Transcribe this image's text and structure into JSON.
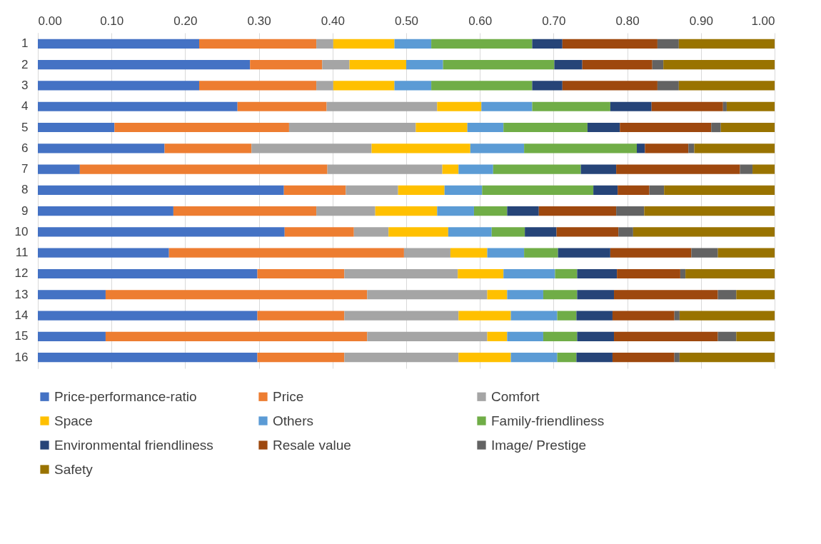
{
  "chart_data": {
    "type": "bar",
    "orientation": "horizontal",
    "stacked": true,
    "grid": "x",
    "legend": "bottom",
    "categories": [
      "1",
      "2",
      "3",
      "4",
      "5",
      "6",
      "7",
      "8",
      "9",
      "10",
      "11",
      "12",
      "13",
      "14",
      "15",
      "16"
    ],
    "xlim": [
      0,
      1
    ],
    "xticks": [
      {
        "value": 0,
        "label": "0.00"
      },
      {
        "value": 0.1,
        "label": "0.10"
      },
      {
        "value": 0.2,
        "label": "0.20"
      },
      {
        "value": 0.3,
        "label": "0.30"
      },
      {
        "value": 0.4,
        "label": "0.40"
      },
      {
        "value": 0.5,
        "label": "0.50"
      },
      {
        "value": 0.6,
        "label": "0.60"
      },
      {
        "value": 0.7,
        "label": "0.70"
      },
      {
        "value": 0.8,
        "label": "0.80"
      },
      {
        "value": 0.9,
        "label": "0.90"
      },
      {
        "value": 1,
        "label": "1.00"
      }
    ],
    "series": [
      {
        "name": "Price-performance-ratio",
        "color": "#4472c4",
        "values": [
          0.219,
          0.288,
          0.219,
          0.271,
          0.104,
          0.172,
          0.057,
          0.334,
          0.184,
          0.335,
          0.178,
          0.298,
          0.092,
          0.298,
          0.092,
          0.298
        ]
      },
      {
        "name": "Price",
        "color": "#ed7d31",
        "values": [
          0.159,
          0.098,
          0.159,
          0.121,
          0.237,
          0.118,
          0.336,
          0.084,
          0.194,
          0.094,
          0.319,
          0.118,
          0.355,
          0.118,
          0.355,
          0.118
        ]
      },
      {
        "name": "Comfort",
        "color": "#a5a5a5",
        "values": [
          0.023,
          0.037,
          0.023,
          0.15,
          0.172,
          0.163,
          0.156,
          0.071,
          0.08,
          0.047,
          0.063,
          0.154,
          0.163,
          0.155,
          0.163,
          0.155
        ]
      },
      {
        "name": "Space",
        "color": "#ffc000",
        "values": [
          0.083,
          0.077,
          0.083,
          0.06,
          0.07,
          0.134,
          0.022,
          0.063,
          0.084,
          0.081,
          0.05,
          0.062,
          0.027,
          0.071,
          0.027,
          0.071
        ]
      },
      {
        "name": "Others",
        "color": "#5b9bd5",
        "values": [
          0.05,
          0.05,
          0.05,
          0.069,
          0.049,
          0.073,
          0.047,
          0.051,
          0.05,
          0.059,
          0.05,
          0.07,
          0.049,
          0.063,
          0.049,
          0.063
        ]
      },
      {
        "name": "Family-friendliness",
        "color": "#70ad47",
        "values": [
          0.137,
          0.151,
          0.137,
          0.106,
          0.114,
          0.153,
          0.119,
          0.151,
          0.045,
          0.045,
          0.046,
          0.03,
          0.046,
          0.026,
          0.046,
          0.026
        ]
      },
      {
        "name": "Environmental friendliness",
        "color": "#264478",
        "values": [
          0.041,
          0.038,
          0.041,
          0.056,
          0.044,
          0.011,
          0.048,
          0.033,
          0.043,
          0.043,
          0.071,
          0.054,
          0.05,
          0.049,
          0.05,
          0.049
        ]
      },
      {
        "name": "Resale value",
        "color": "#9e480e",
        "values": [
          0.129,
          0.095,
          0.129,
          0.097,
          0.124,
          0.059,
          0.168,
          0.043,
          0.105,
          0.084,
          0.11,
          0.086,
          0.141,
          0.084,
          0.141,
          0.084
        ]
      },
      {
        "name": "Image/ Prestige",
        "color": "#636363",
        "values": [
          0.029,
          0.015,
          0.029,
          0.005,
          0.013,
          0.008,
          0.017,
          0.02,
          0.038,
          0.02,
          0.036,
          0.007,
          0.025,
          0.007,
          0.025,
          0.007
        ]
      },
      {
        "name": "Safety",
        "color": "#997300",
        "values": [
          0.13,
          0.151,
          0.13,
          0.065,
          0.073,
          0.109,
          0.03,
          0.15,
          0.177,
          0.192,
          0.077,
          0.121,
          0.052,
          0.129,
          0.052,
          0.129
        ]
      }
    ]
  }
}
